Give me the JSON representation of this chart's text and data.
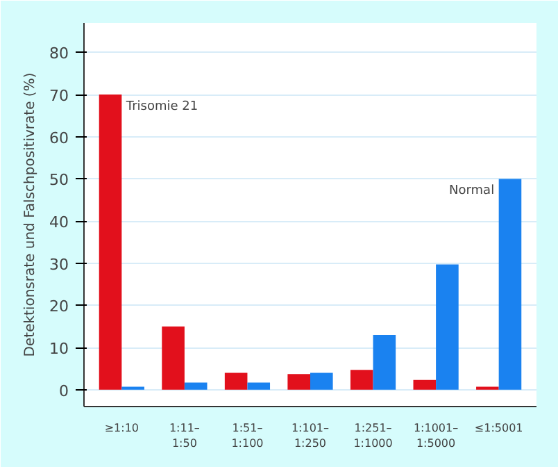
{
  "chart_data": {
    "type": "bar",
    "ylabel": "Detektionsrate und Falschpositivrate (%)",
    "categories": [
      "≥1:10",
      "1:11–\n1:50",
      "1:51–\n1:100",
      "1:101–\n1:250",
      "1:251–\n1:1000",
      "1:1001–\n1:5000",
      "≤1:5001"
    ],
    "series": [
      {
        "name": "Trisomie 21",
        "color": "#e2101c",
        "values": [
          70,
          15,
          4,
          3.7,
          4.7,
          2.3,
          0.7
        ]
      },
      {
        "name": "Normal",
        "color": "#1a82f0",
        "values": [
          0.7,
          1.7,
          1.7,
          4,
          13,
          29.7,
          50
        ]
      }
    ],
    "ylim": [
      -4,
      87
    ],
    "yticks": [
      0,
      10,
      20,
      30,
      40,
      50,
      60,
      70,
      80
    ],
    "grid": "y",
    "legend": false
  }
}
